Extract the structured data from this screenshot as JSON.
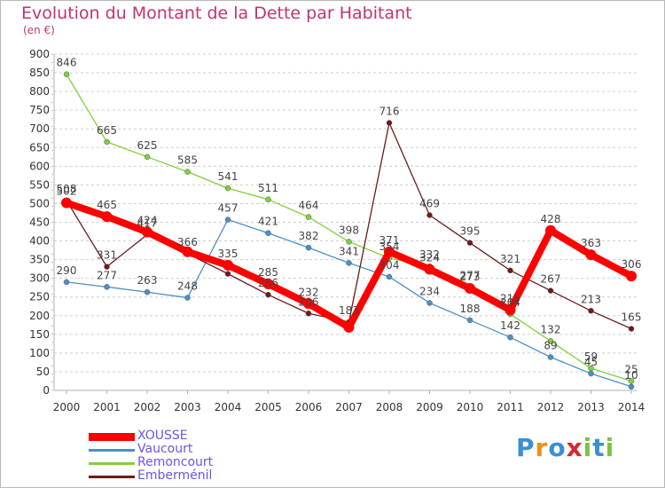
{
  "chart_data": {
    "type": "line",
    "title": "Evolution du Montant de la Dette par Habitant",
    "subtitle": "(en €)",
    "x": [
      "2000",
      "2001",
      "2002",
      "2003",
      "2004",
      "2005",
      "2006",
      "2007",
      "2008",
      "2009",
      "2010",
      "2011",
      "2012",
      "2013",
      "2014"
    ],
    "y_ticks": [
      "0",
      "50",
      "100",
      "150",
      "200",
      "250",
      "300",
      "350",
      "400",
      "450",
      "500",
      "550",
      "600",
      "650",
      "700",
      "750",
      "800",
      "850",
      "900"
    ],
    "ylim": [
      0,
      900
    ],
    "grid": "horizontal-dashed",
    "legend_position": "bottom-left",
    "series": [
      {
        "name": "XOUSSE",
        "color": "#ff0000",
        "values": [
          502,
          465,
          424,
          371,
          335,
          285,
          232,
          169,
          371,
          324,
          273,
          215,
          428,
          363,
          306
        ]
      },
      {
        "name": "Vaucourt",
        "color": "#4a90c8",
        "values": [
          290,
          277,
          263,
          248,
          457,
          421,
          382,
          341,
          304,
          234,
          188,
          142,
          89,
          45,
          10
        ]
      },
      {
        "name": "Remoncourt",
        "color": "#7ed13a",
        "values": [
          846,
          665,
          625,
          585,
          541,
          511,
          464,
          398,
          354,
          332,
          277,
          204,
          132,
          59,
          25
        ]
      },
      {
        "name": "Emberménil",
        "color": "#6e1a1a",
        "values": [
          508,
          331,
          417,
          366,
          312,
          256,
          206,
          183,
          716,
          469,
          395,
          321,
          267,
          213,
          165
        ]
      }
    ],
    "data_labels": [
      [
        "502",
        "465",
        "424",
        "",
        "335",
        "285",
        "232",
        "",
        "371",
        "324",
        "273",
        "215",
        "428",
        "363",
        "306"
      ],
      [
        "290",
        "277",
        "263",
        "248",
        "457",
        "421",
        "382",
        "341",
        "304",
        "234",
        "188",
        "142",
        "89",
        "45",
        "10"
      ],
      [
        "846",
        "665",
        "625",
        "585",
        "541",
        "511",
        "464",
        "398",
        "354",
        "332",
        "277",
        "204",
        "132",
        "59",
        "25"
      ],
      [
        "508",
        "331",
        "417",
        "366",
        "",
        "256",
        "206",
        "183",
        "716",
        "469",
        "395",
        "321",
        "267",
        "213",
        "165"
      ]
    ]
  },
  "logo": {
    "text": "Proxiti",
    "letter_colors": [
      "#3a8fd6",
      "#f28c1a",
      "#3a8fd6",
      "#d8262e",
      "#7cc242",
      "#3a8fd6",
      "#7cc242"
    ]
  }
}
